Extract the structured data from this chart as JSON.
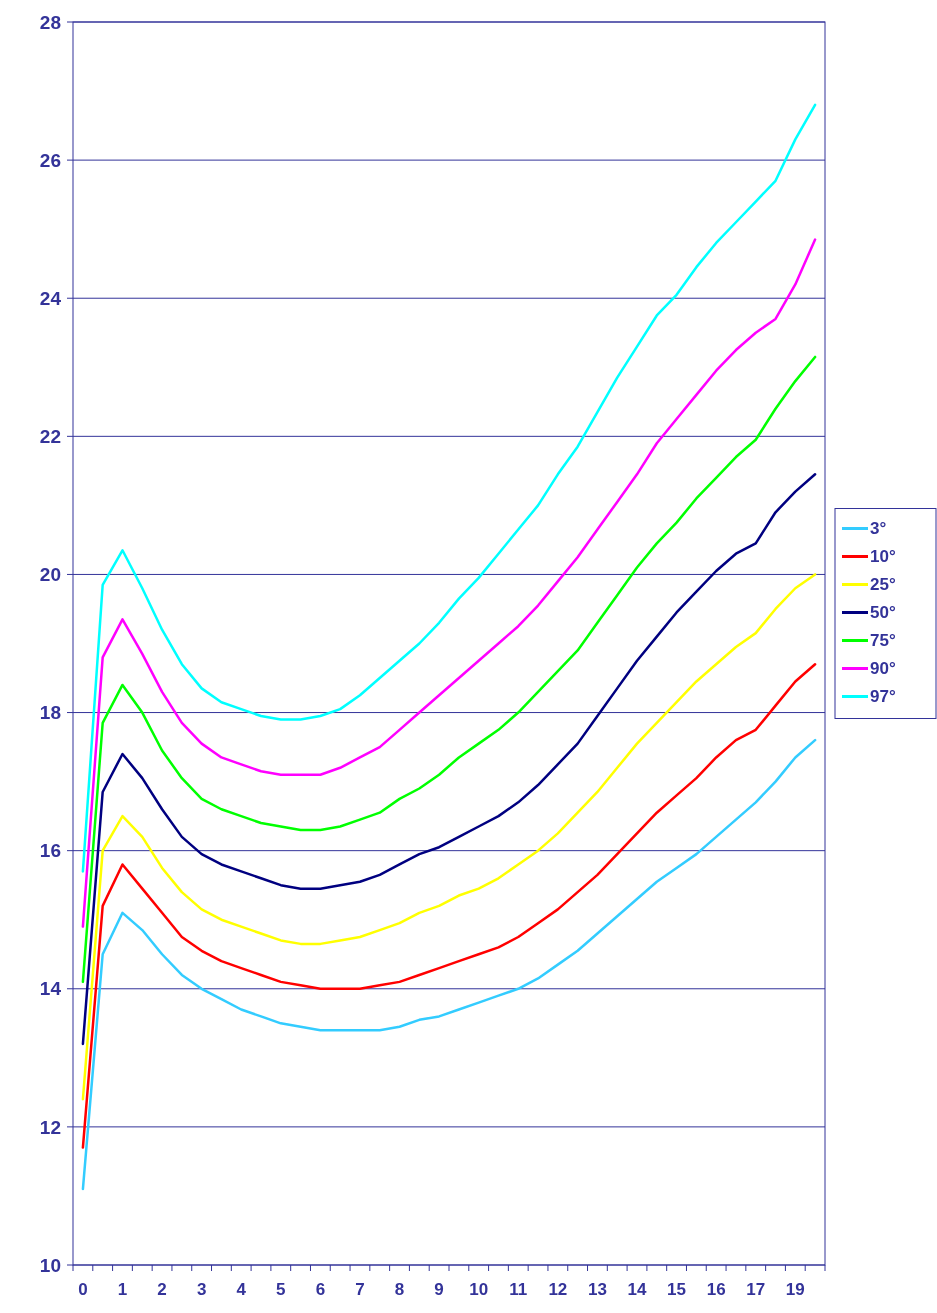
{
  "chart_data": {
    "type": "line",
    "categories": [
      "0",
      null,
      "1",
      null,
      "2",
      null,
      "3",
      null,
      "4",
      null,
      "5",
      null,
      "6",
      null,
      "7",
      null,
      "8",
      null,
      "9",
      null,
      "10",
      null,
      "11",
      null,
      "12",
      null,
      "13",
      null,
      "14",
      null,
      "15",
      null,
      "16",
      null,
      "17",
      null,
      "19",
      null
    ],
    "ylim": [
      10,
      28
    ],
    "yticks": [
      10,
      12,
      14,
      16,
      18,
      20,
      22,
      24,
      26,
      28
    ],
    "grid": "y",
    "legend": "right",
    "marker": "none",
    "line_style": "solid",
    "series": [
      {
        "name": "3°",
        "color": "#33ccff",
        "values": [
          11.1,
          14.5,
          15.1,
          14.85,
          14.5,
          14.2,
          14.0,
          13.85,
          13.7,
          13.6,
          13.5,
          13.45,
          13.4,
          13.4,
          13.4,
          13.4,
          13.45,
          13.55,
          13.6,
          13.7,
          13.8,
          13.9,
          14.0,
          14.15,
          14.35,
          14.55,
          14.8,
          15.05,
          15.3,
          15.55,
          15.75,
          15.95,
          16.2,
          16.45,
          16.7,
          17.0,
          17.35,
          17.6
        ]
      },
      {
        "name": "10°",
        "color": "#ff0000",
        "values": [
          11.7,
          15.2,
          15.8,
          15.45,
          15.1,
          14.75,
          14.55,
          14.4,
          14.3,
          14.2,
          14.1,
          14.05,
          14.0,
          14.0,
          14.0,
          14.05,
          14.1,
          14.2,
          14.3,
          14.4,
          14.5,
          14.6,
          14.75,
          14.95,
          15.15,
          15.4,
          15.65,
          15.95,
          16.25,
          16.55,
          16.8,
          17.05,
          17.35,
          17.6,
          17.75,
          18.1,
          18.45,
          18.7
        ]
      },
      {
        "name": "25°",
        "color": "#ffff00",
        "values": [
          12.4,
          16.0,
          16.5,
          16.2,
          15.75,
          15.4,
          15.15,
          15.0,
          14.9,
          14.8,
          14.7,
          14.65,
          14.65,
          14.7,
          14.75,
          14.85,
          14.95,
          15.1,
          15.2,
          15.35,
          15.45,
          15.6,
          15.8,
          16.0,
          16.25,
          16.55,
          16.85,
          17.2,
          17.55,
          17.85,
          18.15,
          18.45,
          18.7,
          18.95,
          19.15,
          19.5,
          19.8,
          20.0
        ]
      },
      {
        "name": "50°",
        "color": "#000080",
        "values": [
          13.2,
          16.85,
          17.4,
          17.05,
          16.6,
          16.2,
          15.95,
          15.8,
          15.7,
          15.6,
          15.5,
          15.45,
          15.45,
          15.5,
          15.55,
          15.65,
          15.8,
          15.95,
          16.05,
          16.2,
          16.35,
          16.5,
          16.7,
          16.95,
          17.25,
          17.55,
          17.95,
          18.35,
          18.75,
          19.1,
          19.45,
          19.75,
          20.05,
          20.3,
          20.45,
          20.9,
          21.2,
          21.45
        ]
      },
      {
        "name": "75°",
        "color": "#00ff00",
        "values": [
          14.1,
          17.85,
          18.4,
          18.0,
          17.45,
          17.05,
          16.75,
          16.6,
          16.5,
          16.4,
          16.35,
          16.3,
          16.3,
          16.35,
          16.45,
          16.55,
          16.75,
          16.9,
          17.1,
          17.35,
          17.55,
          17.75,
          18.0,
          18.3,
          18.6,
          18.9,
          19.3,
          19.7,
          20.1,
          20.45,
          20.75,
          21.1,
          21.4,
          21.7,
          21.95,
          22.4,
          22.8,
          23.15
        ]
      },
      {
        "name": "90°",
        "color": "#ff00ff",
        "values": [
          14.9,
          18.8,
          19.35,
          18.85,
          18.3,
          17.85,
          17.55,
          17.35,
          17.25,
          17.15,
          17.1,
          17.1,
          17.1,
          17.2,
          17.35,
          17.5,
          17.75,
          18.0,
          18.25,
          18.5,
          18.75,
          19.0,
          19.25,
          19.55,
          19.9,
          20.25,
          20.65,
          21.05,
          21.45,
          21.9,
          22.25,
          22.6,
          22.95,
          23.25,
          23.5,
          23.7,
          24.2,
          24.85
        ]
      },
      {
        "name": "97°",
        "color": "#00ffff",
        "values": [
          15.7,
          19.85,
          20.35,
          19.8,
          19.2,
          18.7,
          18.35,
          18.15,
          18.05,
          17.95,
          17.9,
          17.9,
          17.95,
          18.05,
          18.25,
          18.5,
          18.75,
          19.0,
          19.3,
          19.65,
          19.95,
          20.3,
          20.65,
          21.0,
          21.45,
          21.85,
          22.35,
          22.85,
          23.3,
          23.75,
          24.05,
          24.45,
          24.8,
          25.1,
          25.4,
          25.7,
          26.3,
          26.8
        ]
      }
    ]
  }
}
